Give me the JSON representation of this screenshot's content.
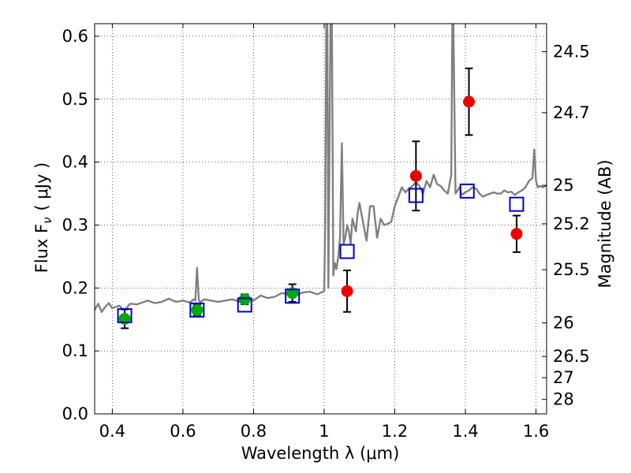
{
  "chart_data": {
    "type": "scatter",
    "xlabel": "Wavelength  λ (μm)",
    "ylabel": "Flux  F",
    "ylabel_sub": "ν",
    "ylabel_unit": "( μJy )",
    "y2label": "Magnitude (AB)",
    "xlim": [
      0.35,
      1.63
    ],
    "ylim": [
      0.0,
      0.62
    ],
    "xticks": [
      0.4,
      0.6,
      0.8,
      1.0,
      1.2,
      1.4,
      1.6
    ],
    "xtick_labels": [
      "0.4",
      "0.6",
      "0.8",
      "1",
      "1.2",
      "1.4",
      "1.6"
    ],
    "yticks": [
      0.0,
      0.1,
      0.2,
      0.3,
      0.4,
      0.5,
      0.6
    ],
    "ytick_labels": [
      "0.0",
      "0.1",
      "0.2",
      "0.3",
      "0.4",
      "0.5",
      "0.6"
    ],
    "mag_ticks": [
      24.5,
      24.7,
      25,
      25.2,
      25.5,
      26,
      26.5,
      27,
      28
    ],
    "mag_tick_labels": [
      "24.5",
      "24.7",
      "25",
      "25.2",
      "25.5",
      "26",
      "26.5",
      "27",
      "28"
    ],
    "grid": true,
    "colors": {
      "spectrum": "#808080",
      "green_points": "#00aa00",
      "red_points": "#ee0000",
      "model_squares": "#0000cc",
      "errorbars": "#000000"
    },
    "series": [
      {
        "kind": "line",
        "x": [
          0.35,
          0.36,
          0.37,
          0.38,
          0.39,
          0.4,
          0.41,
          0.42,
          0.43,
          0.44,
          0.45,
          0.47,
          0.5,
          0.52,
          0.54,
          0.56,
          0.58,
          0.6,
          0.62,
          0.63,
          0.635,
          0.64,
          0.645,
          0.65,
          0.66,
          0.68,
          0.7,
          0.72,
          0.74,
          0.76,
          0.78,
          0.8,
          0.82,
          0.84,
          0.86,
          0.88,
          0.9,
          0.92,
          0.94,
          0.96,
          0.98,
          1.0,
          1.003,
          1.006,
          1.009,
          1.012,
          1.018,
          1.022,
          1.026,
          1.03,
          1.035,
          1.04,
          1.045,
          1.05,
          1.055,
          1.06,
          1.065,
          1.07,
          1.075,
          1.08,
          1.085,
          1.09,
          1.095,
          1.1,
          1.11,
          1.12,
          1.13,
          1.14,
          1.15,
          1.16,
          1.17,
          1.18,
          1.19,
          1.2,
          1.21,
          1.22,
          1.23,
          1.24,
          1.25,
          1.26,
          1.27,
          1.28,
          1.29,
          1.3,
          1.31,
          1.32,
          1.33,
          1.34,
          1.35,
          1.36,
          1.363,
          1.366,
          1.372,
          1.378,
          1.383,
          1.39,
          1.4,
          1.41,
          1.42,
          1.43,
          1.44,
          1.45,
          1.46,
          1.47,
          1.48,
          1.49,
          1.5,
          1.51,
          1.52,
          1.53,
          1.54,
          1.55,
          1.56,
          1.57,
          1.58,
          1.59,
          1.595,
          1.6,
          1.605,
          1.61,
          1.62,
          1.63
        ],
        "y": [
          0.165,
          0.175,
          0.162,
          0.17,
          0.176,
          0.168,
          0.17,
          0.172,
          0.166,
          0.168,
          0.175,
          0.174,
          0.18,
          0.176,
          0.178,
          0.183,
          0.178,
          0.18,
          0.177,
          0.182,
          0.18,
          0.232,
          0.18,
          0.178,
          0.182,
          0.18,
          0.178,
          0.18,
          0.182,
          0.178,
          0.185,
          0.18,
          0.188,
          0.184,
          0.186,
          0.192,
          0.19,
          0.188,
          0.193,
          0.194,
          0.19,
          0.195,
          0.3,
          0.62,
          0.62,
          0.2,
          0.62,
          0.62,
          0.22,
          0.24,
          0.23,
          0.25,
          0.28,
          0.43,
          0.27,
          0.28,
          0.3,
          0.29,
          0.27,
          0.31,
          0.3,
          0.29,
          0.32,
          0.335,
          0.305,
          0.275,
          0.33,
          0.33,
          0.28,
          0.31,
          0.3,
          0.302,
          0.305,
          0.33,
          0.345,
          0.36,
          0.352,
          0.358,
          0.362,
          0.368,
          0.362,
          0.35,
          0.37,
          0.36,
          0.38,
          0.365,
          0.362,
          0.355,
          0.35,
          0.38,
          0.62,
          0.62,
          0.35,
          0.355,
          0.36,
          0.348,
          0.352,
          0.355,
          0.36,
          0.358,
          0.35,
          0.345,
          0.348,
          0.35,
          0.352,
          0.35,
          0.35,
          0.355,
          0.352,
          0.353,
          0.348,
          0.352,
          0.355,
          0.36,
          0.37,
          0.375,
          0.42,
          0.37,
          0.36,
          0.362,
          0.36,
          0.363
        ]
      },
      {
        "kind": "points-green",
        "x": [
          0.435,
          0.64,
          0.775,
          0.91
        ],
        "y": [
          0.151,
          0.165,
          0.182,
          0.192
        ],
        "err": [
          0.015,
          0.009,
          0.008,
          0.014
        ]
      },
      {
        "kind": "points-red",
        "x": [
          1.065,
          1.26,
          1.41,
          1.545
        ],
        "y": [
          0.195,
          0.378,
          0.496,
          0.286
        ],
        "err": [
          0.033,
          0.055,
          0.053,
          0.029
        ]
      },
      {
        "kind": "squares",
        "x": [
          0.435,
          0.64,
          0.775,
          0.91,
          1.065,
          1.26,
          1.405,
          1.545
        ],
        "y": [
          0.156,
          0.165,
          0.173,
          0.187,
          0.258,
          0.347,
          0.354,
          0.333
        ]
      }
    ]
  }
}
